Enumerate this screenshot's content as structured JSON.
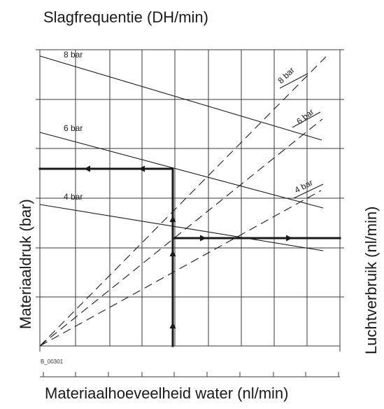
{
  "figure": {
    "title_top": "Slagfrequentie (DH/min)",
    "title_bottom": "Materiaalhoeveelheid water (nl/min)",
    "label_left": "Materiaaldruk (bar)",
    "label_right": "Luchtverbruik (nl/min)",
    "ref_code": "B_00301"
  },
  "stroke_lines": [
    {
      "label": "8 bar"
    },
    {
      "label": "6 bar"
    },
    {
      "label": "4 bar"
    }
  ],
  "air_lines": [
    {
      "label": "8 bar"
    },
    {
      "label": "6 bar"
    },
    {
      "label": "4 bar"
    }
  ],
  "colors": {
    "ink": "#1a1a1a",
    "grid": "#3a3a3a"
  }
}
